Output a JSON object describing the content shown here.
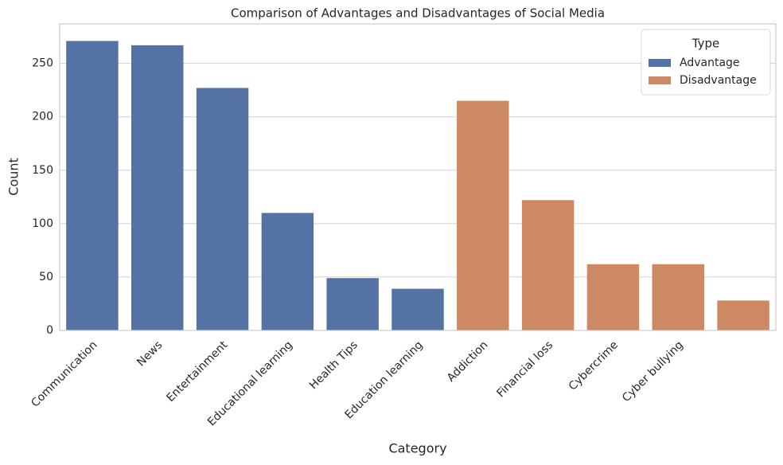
{
  "chart_data": {
    "type": "bar",
    "title": "Comparison of Advantages and Disadvantages of Social Media",
    "x_label": "Category",
    "y_label": "Count",
    "categories": [
      "Communication",
      "News",
      "Entertainment",
      "Educational learning",
      "Health Tips",
      "Education learning",
      "Addiction",
      "Financial loss",
      "Cybercrime",
      "Cyber bullying",
      null
    ],
    "series": [
      {
        "name": "Advantage",
        "color": "#5572a5",
        "values": [
          271,
          267,
          227,
          110,
          49,
          39,
          null,
          null,
          null,
          null,
          null
        ]
      },
      {
        "name": "Disadvantage",
        "color": "#cc8963",
        "values": [
          null,
          null,
          null,
          null,
          null,
          null,
          215,
          122,
          62,
          62,
          28
        ]
      }
    ],
    "legend_title": "Type",
    "legend": "upper right",
    "ylim": [
      0,
      287
    ],
    "yticks": [
      0,
      50,
      100,
      150,
      200,
      250
    ],
    "grid": true
  }
}
